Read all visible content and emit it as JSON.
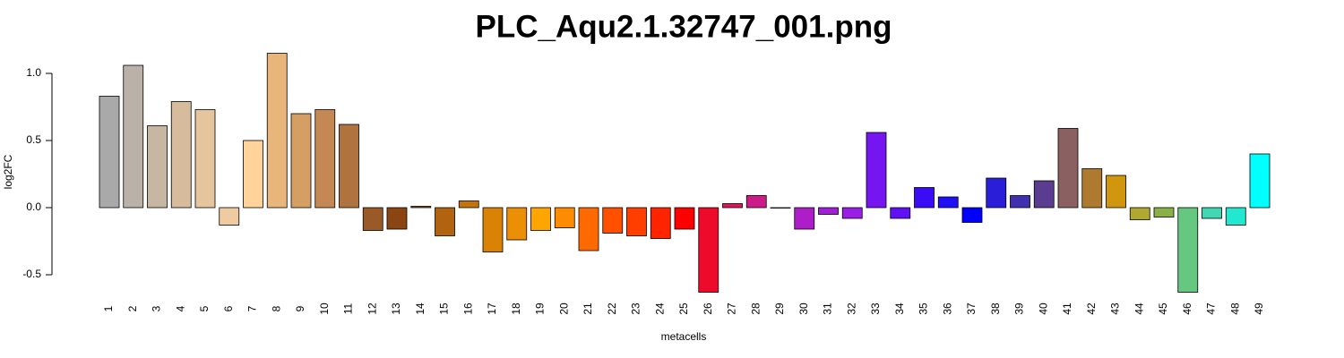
{
  "chart_data": {
    "type": "bar",
    "title": "PLC_Aqu2.1.32747_001.png",
    "x_label": "metacells",
    "y_label": "log2FC",
    "categories": [
      "1",
      "2",
      "3",
      "4",
      "5",
      "6",
      "7",
      "8",
      "9",
      "10",
      "11",
      "12",
      "13",
      "14",
      "15",
      "16",
      "17",
      "18",
      "19",
      "20",
      "21",
      "22",
      "23",
      "24",
      "25",
      "26",
      "27",
      "28",
      "29",
      "30",
      "31",
      "32",
      "33",
      "34",
      "35",
      "36",
      "37",
      "38",
      "39",
      "40",
      "41",
      "42",
      "43",
      "44",
      "45",
      "46",
      "47",
      "48",
      "49"
    ],
    "values": [
      0.83,
      1.06,
      0.61,
      0.79,
      0.73,
      -0.13,
      0.5,
      1.15,
      0.7,
      0.73,
      0.62,
      -0.17,
      -0.16,
      0.01,
      -0.21,
      0.05,
      -0.33,
      -0.24,
      -0.17,
      -0.15,
      -0.32,
      -0.19,
      -0.21,
      -0.23,
      -0.16,
      -0.63,
      0.03,
      0.09,
      0.0,
      -0.16,
      -0.05,
      -0.08,
      0.56,
      -0.08,
      0.15,
      0.08,
      -0.11,
      0.22,
      0.09,
      0.2,
      0.59,
      0.29,
      0.24,
      -0.09,
      -0.07,
      -0.63,
      -0.08,
      -0.13,
      0.4
    ],
    "colors": [
      "#a9a9a9",
      "#bab2a8",
      "#c7b6a1",
      "#d6bc9c",
      "#e4c59d",
      "#f0caa0",
      "#ffd399",
      "#e8b57a",
      "#d59f64",
      "#c58855",
      "#b07340",
      "#9a5a28",
      "#8b4513",
      "#9a5a1a",
      "#b1630f",
      "#c5740a",
      "#d98206",
      "#eb8f05",
      "#ffa500",
      "#ff8c00",
      "#ff6a00",
      "#ff5000",
      "#ff3e00",
      "#ff2400",
      "#ff0000",
      "#ee0a2a",
      "#dd1858",
      "#cc1a88",
      "#bb1aaa",
      "#ae1ec8",
      "#a21ed8",
      "#9a1ee6",
      "#7515f0",
      "#6010f5",
      "#3a0cf5",
      "#2010f5",
      "#0000ff",
      "#2a1ed8",
      "#4030b0",
      "#5a3c90",
      "#8b6060",
      "#ae7a30",
      "#d0960e",
      "#b0a830",
      "#8ab048",
      "#66c880",
      "#40d8b0",
      "#22e8d0",
      "#00ffff"
    ],
    "ylim": [
      -0.7,
      1.22
    ],
    "yticks": [
      -0.5,
      {
        "value": 0,
        "label": "0.0"
      },
      0.5,
      {
        "value": 1,
        "label": "1.0"
      }
    ]
  }
}
